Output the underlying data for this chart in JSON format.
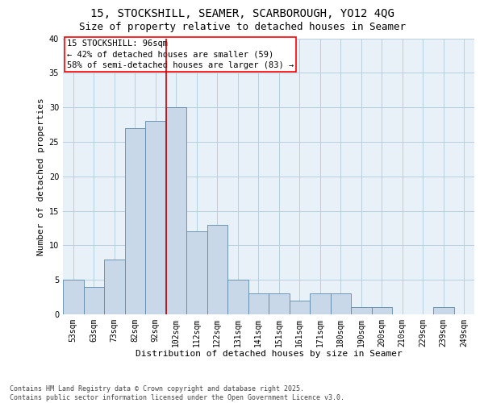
{
  "title_line1": "15, STOCKSHILL, SEAMER, SCARBOROUGH, YO12 4QG",
  "title_line2": "Size of property relative to detached houses in Seamer",
  "xlabel": "Distribution of detached houses by size in Seamer",
  "ylabel": "Number of detached properties",
  "categories": [
    "53sqm",
    "63sqm",
    "73sqm",
    "82sqm",
    "92sqm",
    "102sqm",
    "112sqm",
    "122sqm",
    "131sqm",
    "141sqm",
    "151sqm",
    "161sqm",
    "171sqm",
    "180sqm",
    "190sqm",
    "200sqm",
    "210sqm",
    "229sqm",
    "239sqm",
    "249sqm"
  ],
  "values": [
    5,
    4,
    8,
    27,
    28,
    30,
    12,
    13,
    5,
    3,
    3,
    2,
    3,
    3,
    1,
    1,
    0,
    0,
    1,
    0
  ],
  "bar_color": "#c8d8e8",
  "bar_edge_color": "#5a8aaa",
  "vline_x": 4.5,
  "vline_color": "#cc0000",
  "annotation_box_text": "15 STOCKSHILL: 96sqm\n← 42% of detached houses are smaller (59)\n58% of semi-detached houses are larger (83) →",
  "ylim": [
    0,
    40
  ],
  "yticks": [
    0,
    5,
    10,
    15,
    20,
    25,
    30,
    35,
    40
  ],
  "grid_color": "#b8cfe0",
  "bg_color": "#e8f0f8",
  "footer_text": "Contains HM Land Registry data © Crown copyright and database right 2025.\nContains public sector information licensed under the Open Government Licence v3.0.",
  "title_fontsize": 10,
  "subtitle_fontsize": 9,
  "axis_fontsize": 8,
  "tick_fontsize": 7,
  "annotation_fontsize": 7.5,
  "footer_fontsize": 6
}
